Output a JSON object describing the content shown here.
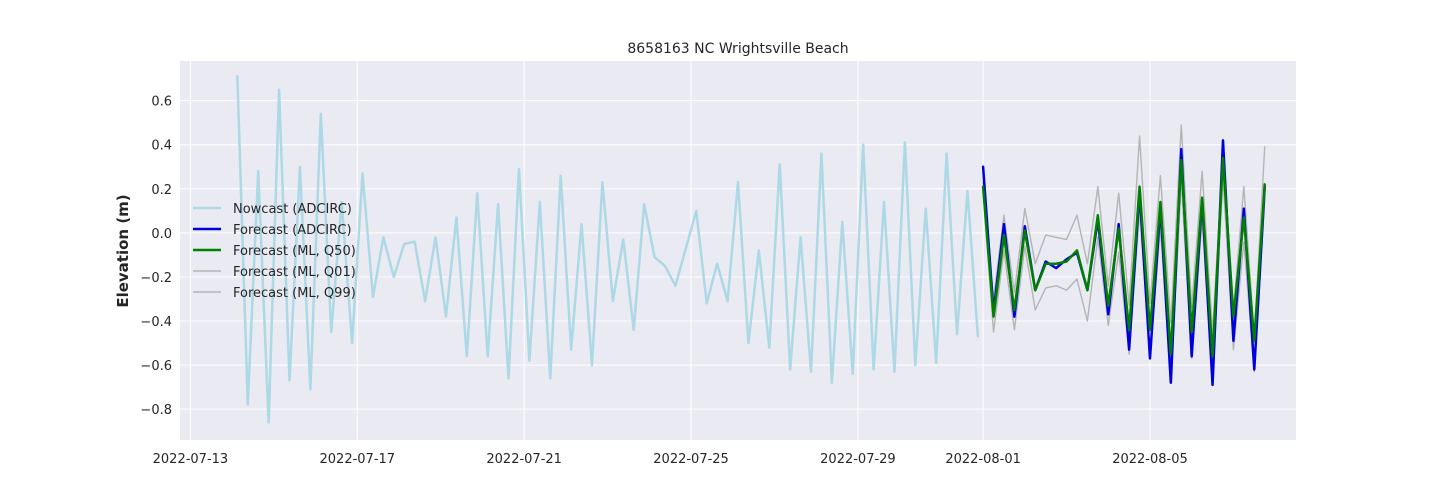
{
  "chart_data": {
    "type": "line",
    "title": "8658163 NC Wrightsville Beach",
    "xlabel": "",
    "ylabel": "Elevation (m)",
    "xlim": [
      "2022-07-12T18:00",
      "2022-08-08T12:00"
    ],
    "ylim": [
      -0.94,
      0.78
    ],
    "x_ticks": [
      "2022-07-13",
      "2022-07-17",
      "2022-07-21",
      "2022-07-25",
      "2022-07-29",
      "2022-08-01",
      "2022-08-05"
    ],
    "y_ticks": [
      -0.8,
      -0.6,
      -0.4,
      -0.2,
      0.0,
      0.2,
      0.4,
      0.6
    ],
    "y_tick_labels": [
      "−0.8",
      "−0.6",
      "−0.4",
      "−0.2",
      "0.0",
      "0.2",
      "0.4",
      "0.6"
    ],
    "grid": true,
    "legend_position": "center-left",
    "series": [
      {
        "name": "Nowcast (ADCIRC)",
        "color": "#add8e6",
        "x": [
          "2022-07-14T03:00",
          "2022-07-14T09:00",
          "2022-07-14T15:00",
          "2022-07-14T21:00",
          "2022-07-15T03:00",
          "2022-07-15T09:00",
          "2022-07-15T15:00",
          "2022-07-15T21:00",
          "2022-07-16T03:00",
          "2022-07-16T09:00",
          "2022-07-16T15:00",
          "2022-07-16T21:00",
          "2022-07-17T03:00",
          "2022-07-17T09:00",
          "2022-07-17T15:00",
          "2022-07-17T21:00",
          "2022-07-18T03:00",
          "2022-07-18T09:00",
          "2022-07-18T15:00",
          "2022-07-18T21:00",
          "2022-07-19T03:00",
          "2022-07-19T09:00",
          "2022-07-19T15:00",
          "2022-07-19T21:00",
          "2022-07-20T03:00",
          "2022-07-20T09:00",
          "2022-07-20T15:00",
          "2022-07-20T21:00",
          "2022-07-21T03:00",
          "2022-07-21T09:00",
          "2022-07-21T15:00",
          "2022-07-21T21:00",
          "2022-07-22T03:00",
          "2022-07-22T09:00",
          "2022-07-22T15:00",
          "2022-07-22T21:00",
          "2022-07-23T03:00",
          "2022-07-23T09:00",
          "2022-07-23T15:00",
          "2022-07-23T21:00",
          "2022-07-24T03:00",
          "2022-07-24T09:00",
          "2022-07-24T15:00",
          "2022-07-24T21:00",
          "2022-07-25T03:00",
          "2022-07-25T09:00",
          "2022-07-25T15:00",
          "2022-07-25T21:00",
          "2022-07-26T03:00",
          "2022-07-26T09:00",
          "2022-07-26T15:00",
          "2022-07-26T21:00",
          "2022-07-27T03:00",
          "2022-07-27T09:00",
          "2022-07-27T15:00",
          "2022-07-27T21:00",
          "2022-07-28T03:00",
          "2022-07-28T09:00",
          "2022-07-28T15:00",
          "2022-07-28T21:00",
          "2022-07-29T03:00",
          "2022-07-29T09:00",
          "2022-07-29T15:00",
          "2022-07-29T21:00",
          "2022-07-30T03:00",
          "2022-07-30T09:00",
          "2022-07-30T15:00",
          "2022-07-30T21:00",
          "2022-07-31T03:00",
          "2022-07-31T09:00",
          "2022-07-31T15:00",
          "2022-07-31T21:00"
        ],
        "values": [
          0.71,
          -0.78,
          0.28,
          -0.86,
          0.65,
          -0.67,
          0.3,
          -0.71,
          0.54,
          -0.45,
          0.14,
          -0.5,
          0.27,
          -0.29,
          -0.02,
          -0.2,
          -0.05,
          -0.04,
          -0.31,
          -0.02,
          -0.38,
          0.07,
          -0.56,
          0.18,
          -0.56,
          0.13,
          -0.66,
          0.29,
          -0.58,
          0.14,
          -0.66,
          0.26,
          -0.53,
          0.04,
          -0.6,
          0.23,
          -0.31,
          -0.03,
          -0.44,
          0.13,
          -0.11,
          -0.15,
          -0.24,
          -0.07,
          0.1,
          -0.32,
          -0.14,
          -0.31,
          0.23,
          -0.5,
          -0.08,
          -0.52,
          0.31,
          -0.62,
          -0.02,
          -0.63,
          0.36,
          -0.68,
          0.05,
          -0.64,
          0.4,
          -0.62,
          0.14,
          -0.63,
          0.41,
          -0.6,
          0.11,
          -0.59,
          0.36,
          -0.46,
          0.19,
          -0.47
        ]
      },
      {
        "name": "Forecast (ADCIRC)",
        "color": "#0000dd",
        "x": [
          "2022-08-01T00:00",
          "2022-08-01T06:00",
          "2022-08-01T12:00",
          "2022-08-01T18:00",
          "2022-08-02T00:00",
          "2022-08-02T06:00",
          "2022-08-02T12:00",
          "2022-08-02T18:00",
          "2022-08-03T00:00",
          "2022-08-03T06:00",
          "2022-08-03T12:00",
          "2022-08-03T18:00",
          "2022-08-04T00:00",
          "2022-08-04T06:00",
          "2022-08-04T12:00",
          "2022-08-04T18:00",
          "2022-08-05T00:00",
          "2022-08-05T06:00",
          "2022-08-05T12:00",
          "2022-08-05T18:00",
          "2022-08-06T00:00",
          "2022-08-06T06:00",
          "2022-08-06T12:00",
          "2022-08-06T18:00",
          "2022-08-07T00:00",
          "2022-08-07T06:00",
          "2022-08-07T12:00",
          "2022-08-07T18:00"
        ],
        "values": [
          0.3,
          -0.36,
          0.04,
          -0.38,
          0.03,
          -0.26,
          -0.13,
          -0.16,
          -0.12,
          -0.09,
          -0.26,
          0.06,
          -0.37,
          0.04,
          -0.53,
          0.19,
          -0.57,
          0.12,
          -0.68,
          0.38,
          -0.56,
          0.15,
          -0.69,
          0.42,
          -0.49,
          0.11,
          -0.62,
          0.21
        ]
      },
      {
        "name": "Forecast (ML, Q50)",
        "color": "#008000",
        "x": [
          "2022-08-01T00:00",
          "2022-08-01T06:00",
          "2022-08-01T12:00",
          "2022-08-01T18:00",
          "2022-08-02T00:00",
          "2022-08-02T06:00",
          "2022-08-02T12:00",
          "2022-08-02T18:00",
          "2022-08-03T00:00",
          "2022-08-03T06:00",
          "2022-08-03T12:00",
          "2022-08-03T18:00",
          "2022-08-04T00:00",
          "2022-08-04T06:00",
          "2022-08-04T12:00",
          "2022-08-04T18:00",
          "2022-08-05T00:00",
          "2022-08-05T06:00",
          "2022-08-05T12:00",
          "2022-08-05T18:00",
          "2022-08-06T00:00",
          "2022-08-06T06:00",
          "2022-08-06T12:00",
          "2022-08-06T18:00",
          "2022-08-07T00:00",
          "2022-08-07T06:00",
          "2022-08-07T12:00",
          "2022-08-07T18:00"
        ],
        "values": [
          0.21,
          -0.38,
          -0.01,
          -0.35,
          0.01,
          -0.26,
          -0.14,
          -0.14,
          -0.13,
          -0.08,
          -0.26,
          0.08,
          -0.33,
          0.02,
          -0.44,
          0.21,
          -0.44,
          0.14,
          -0.55,
          0.33,
          -0.45,
          0.16,
          -0.56,
          0.34,
          -0.38,
          0.07,
          -0.49,
          0.22
        ]
      },
      {
        "name": "Forecast (ML, Q01)",
        "color": "#b4b4b4",
        "x": [
          "2022-08-01T00:00",
          "2022-08-01T06:00",
          "2022-08-01T12:00",
          "2022-08-01T18:00",
          "2022-08-02T00:00",
          "2022-08-02T06:00",
          "2022-08-02T12:00",
          "2022-08-02T18:00",
          "2022-08-03T00:00",
          "2022-08-03T06:00",
          "2022-08-03T12:00",
          "2022-08-03T18:00",
          "2022-08-04T00:00",
          "2022-08-04T06:00",
          "2022-08-04T12:00",
          "2022-08-04T18:00",
          "2022-08-05T00:00",
          "2022-08-05T06:00",
          "2022-08-05T12:00",
          "2022-08-05T18:00",
          "2022-08-06T00:00",
          "2022-08-06T06:00",
          "2022-08-06T12:00",
          "2022-08-06T18:00",
          "2022-08-07T00:00",
          "2022-08-07T06:00",
          "2022-08-07T12:00",
          "2022-08-07T18:00"
        ],
        "values": [
          0.19,
          -0.45,
          -0.08,
          -0.44,
          -0.06,
          -0.35,
          -0.25,
          -0.24,
          -0.26,
          -0.21,
          -0.4,
          -0.02,
          -0.42,
          -0.09,
          -0.55,
          0.1,
          -0.55,
          0.02,
          -0.66,
          0.23,
          -0.57,
          0.06,
          -0.67,
          0.25,
          -0.53,
          -0.04,
          -0.63,
          0.15
        ]
      },
      {
        "name": "Forecast (ML, Q99)",
        "color": "#b4b4b4",
        "x": [
          "2022-08-01T00:00",
          "2022-08-01T06:00",
          "2022-08-01T12:00",
          "2022-08-01T18:00",
          "2022-08-02T00:00",
          "2022-08-02T06:00",
          "2022-08-02T12:00",
          "2022-08-02T18:00",
          "2022-08-03T00:00",
          "2022-08-03T06:00",
          "2022-08-03T12:00",
          "2022-08-03T18:00",
          "2022-08-04T00:00",
          "2022-08-04T06:00",
          "2022-08-04T12:00",
          "2022-08-04T18:00",
          "2022-08-05T00:00",
          "2022-08-05T06:00",
          "2022-08-05T12:00",
          "2022-08-05T18:00",
          "2022-08-06T00:00",
          "2022-08-06T06:00",
          "2022-08-06T12:00",
          "2022-08-06T18:00",
          "2022-08-07T00:00",
          "2022-08-07T06:00",
          "2022-08-07T12:00",
          "2022-08-07T18:00"
        ],
        "values": [
          0.23,
          -0.3,
          0.08,
          -0.27,
          0.11,
          -0.14,
          -0.01,
          -0.02,
          -0.03,
          0.08,
          -0.14,
          0.21,
          -0.24,
          0.18,
          -0.33,
          0.44,
          -0.32,
          0.26,
          -0.41,
          0.49,
          -0.34,
          0.28,
          -0.45,
          0.36,
          -0.35,
          0.21,
          -0.47,
          0.39
        ]
      }
    ],
    "colors": {
      "plot_background": "#eaeaf2",
      "grid": "#ffffff",
      "text": "#262626"
    }
  }
}
